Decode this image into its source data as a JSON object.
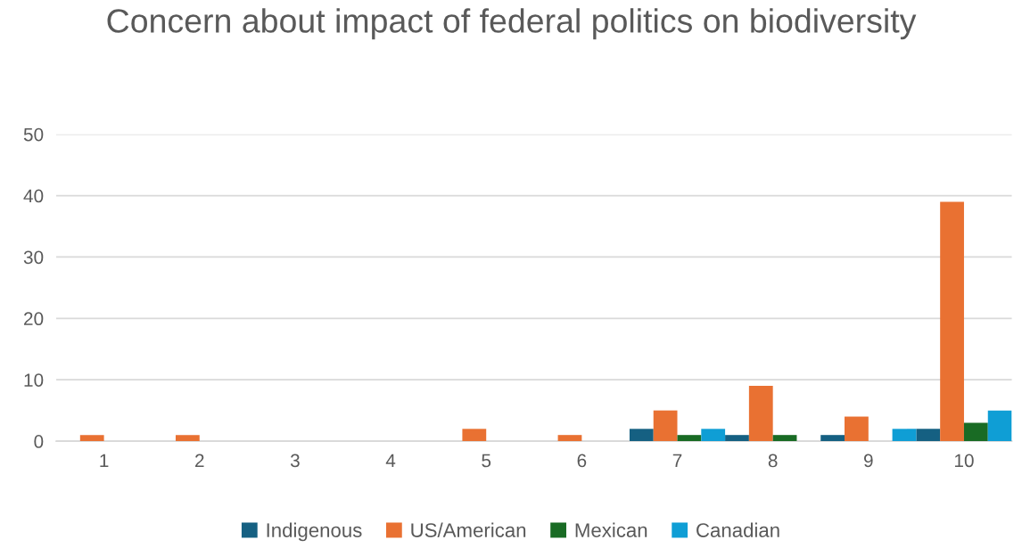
{
  "chart_data": {
    "type": "bar",
    "title": "Concern about impact of federal politics on biodiversity",
    "categories": [
      "1",
      "2",
      "3",
      "4",
      "5",
      "6",
      "7",
      "8",
      "9",
      "10"
    ],
    "series": [
      {
        "name": "Indigenous",
        "color": "#156082",
        "values": [
          0,
          0,
          0,
          0,
          0,
          0,
          2,
          1,
          1,
          2
        ]
      },
      {
        "name": "US/American",
        "color": "#e97132",
        "values": [
          1,
          1,
          0,
          0,
          2,
          1,
          5,
          9,
          4,
          39
        ]
      },
      {
        "name": "Mexican",
        "color": "#196b24",
        "values": [
          0,
          0,
          0,
          0,
          0,
          0,
          1,
          1,
          0,
          3
        ]
      },
      {
        "name": "Canadian",
        "color": "#0f9ed5",
        "values": [
          0,
          0,
          0,
          0,
          0,
          0,
          2,
          0,
          2,
          5
        ]
      }
    ],
    "ylim": [
      0,
      50
    ],
    "yticks": [
      0,
      10,
      20,
      30,
      40,
      50
    ],
    "grid": "y",
    "legend": "bottom"
  }
}
